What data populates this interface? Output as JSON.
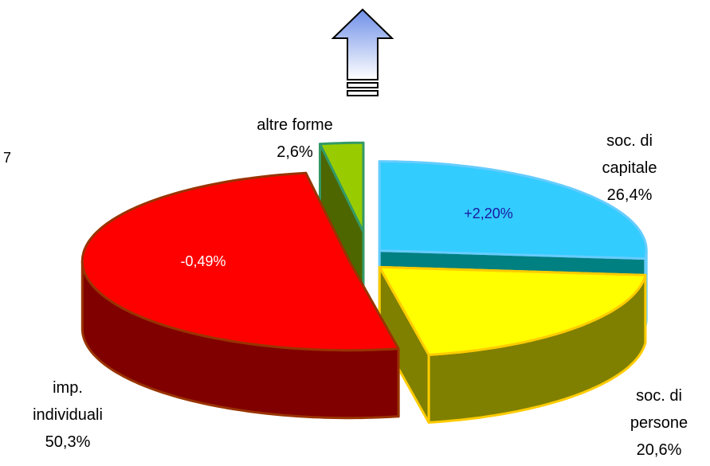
{
  "chart_data": {
    "type": "pie",
    "categories": [
      "soc. di capitale",
      "soc. di persone",
      "imp. individuali",
      "altre forme"
    ],
    "values": [
      26.4,
      20.6,
      50.3,
      2.6
    ],
    "value_labels": [
      "26,4%",
      "20,6%",
      "50,3%",
      "2,6%"
    ],
    "colors": [
      "#33ccff",
      "#ffff00",
      "#ff0000",
      "#99cc00"
    ],
    "annotations": [
      "+2,20%",
      "-0,49%",
      "7"
    ]
  }
}
